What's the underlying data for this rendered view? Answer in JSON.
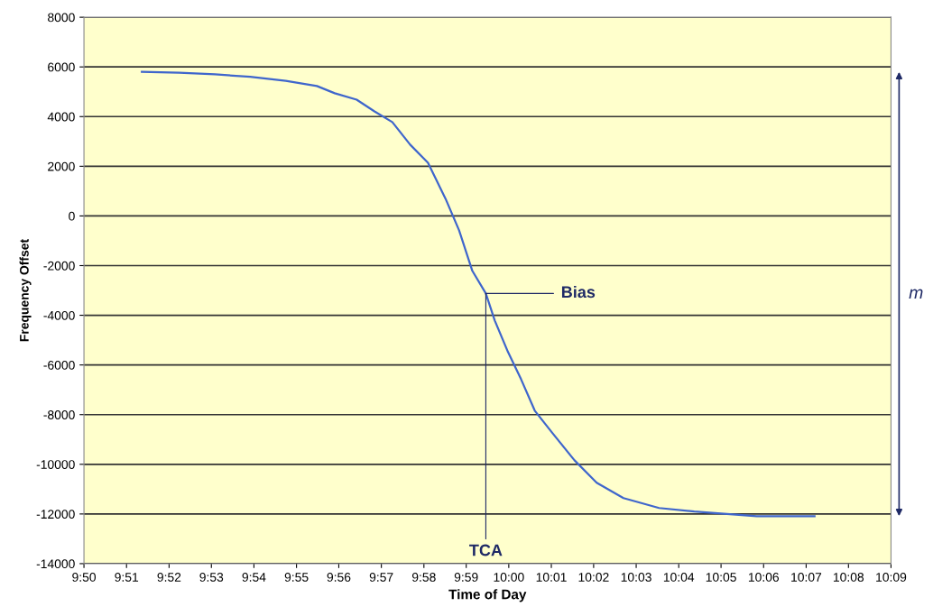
{
  "chart_data": {
    "type": "line",
    "xlabel": "Time of Day",
    "ylabel": "Frequency Offset",
    "x": [
      9.856,
      9.8707,
      9.8847,
      9.8985,
      9.9125,
      9.9247,
      9.9317,
      9.9403,
      9.9473,
      9.9543,
      9.9613,
      9.9683,
      9.9752,
      9.9805,
      9.9857,
      9.991,
      9.9945,
      9.9997,
      10.0048,
      10.0102,
      10.0172,
      10.0258,
      10.0345,
      10.045,
      10.059,
      10.0728,
      10.0868,
      10.0973,
      10.12
    ],
    "series": [
      {
        "color": "#3f66cc",
        "values": [
          5800,
          5770,
          5700,
          5600,
          5440,
          5230,
          4940,
          4680,
          4210,
          3780,
          2870,
          2140,
          690,
          -580,
          -2210,
          -3120,
          -4210,
          -5480,
          -6570,
          -7840,
          -8750,
          -9840,
          -10740,
          -11360,
          -11760,
          -11900,
          -12010,
          -12090,
          -12090
        ]
      }
    ],
    "xlim": [
      9.8333,
      10.15
    ],
    "xticks": [
      {
        "value": 9.8333,
        "label": "9:50"
      },
      {
        "value": 9.85,
        "label": "9:51"
      },
      {
        "value": 9.8667,
        "label": "9:52"
      },
      {
        "value": 9.8833,
        "label": "9:53"
      },
      {
        "value": 9.9,
        "label": "9:54"
      },
      {
        "value": 9.9167,
        "label": "9:55"
      },
      {
        "value": 9.9333,
        "label": "9:56"
      },
      {
        "value": 9.95,
        "label": "9:57"
      },
      {
        "value": 9.9667,
        "label": "9:58"
      },
      {
        "value": 9.9833,
        "label": "9:59"
      },
      {
        "value": 10.0,
        "label": "10:00"
      },
      {
        "value": 10.0167,
        "label": "10:01"
      },
      {
        "value": 10.0333,
        "label": "10:02"
      },
      {
        "value": 10.05,
        "label": "10:03"
      },
      {
        "value": 10.0667,
        "label": "10:04"
      },
      {
        "value": 10.0833,
        "label": "10:05"
      },
      {
        "value": 10.1,
        "label": "10:06"
      },
      {
        "value": 10.1167,
        "label": "10:07"
      },
      {
        "value": 10.1333,
        "label": "10:08"
      },
      {
        "value": 10.15,
        "label": "10:09"
      }
    ],
    "ylim": [
      -14000,
      8000
    ],
    "yticks": [
      -14000,
      -12000,
      -10000,
      -8000,
      -6000,
      -4000,
      -2000,
      0,
      2000,
      4000,
      6000,
      8000
    ],
    "grid": "y",
    "annotations": [
      {
        "text": "Bias",
        "x": 9.991,
        "y": -3120
      },
      {
        "text": "TCA",
        "x": 9.991,
        "y": -3120
      },
      "m"
    ]
  }
}
